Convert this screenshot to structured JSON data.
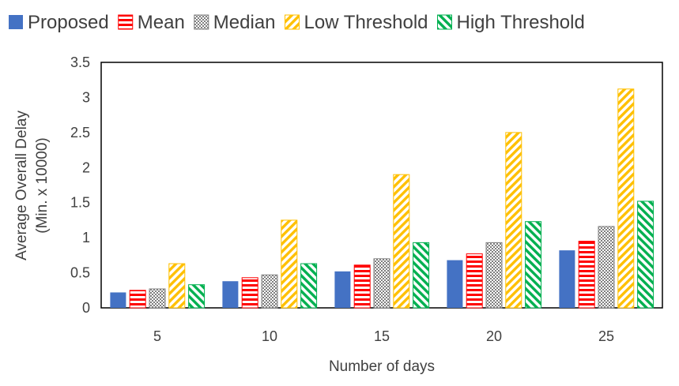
{
  "chart_data": {
    "type": "bar",
    "title": "",
    "xlabel": "Number of days",
    "ylabel_lines": [
      "Average Overall Delay",
      "(Min. x 10000)"
    ],
    "categories": [
      "5",
      "10",
      "15",
      "20",
      "25"
    ],
    "ylim": [
      0,
      3.5
    ],
    "yticks": [
      0,
      0.5,
      1,
      1.5,
      2,
      2.5,
      3,
      3.5
    ],
    "ytick_labels": [
      "0",
      "0.5",
      "1",
      "1.5",
      "2",
      "2.5",
      "3",
      "3.5"
    ],
    "grid": false,
    "legend_position": "top",
    "series": [
      {
        "name": "Proposed",
        "color": "#4472c4",
        "pattern": "solid",
        "values": [
          0.22,
          0.38,
          0.52,
          0.68,
          0.82
        ]
      },
      {
        "name": "Mean",
        "color": "#ff0000",
        "pattern": "horizontal-lines",
        "values": [
          0.25,
          0.43,
          0.61,
          0.77,
          0.95
        ]
      },
      {
        "name": "Median",
        "color": "#7f7f7f",
        "pattern": "checker",
        "values": [
          0.27,
          0.47,
          0.7,
          0.93,
          1.16
        ]
      },
      {
        "name": "Low Threshold",
        "color": "#ffc000",
        "pattern": "diagonal-down",
        "values": [
          0.63,
          1.25,
          1.9,
          2.5,
          3.12
        ]
      },
      {
        "name": "High Threshold",
        "color": "#00b050",
        "pattern": "diagonal-up",
        "values": [
          0.33,
          0.63,
          0.93,
          1.23,
          1.52
        ]
      }
    ]
  }
}
